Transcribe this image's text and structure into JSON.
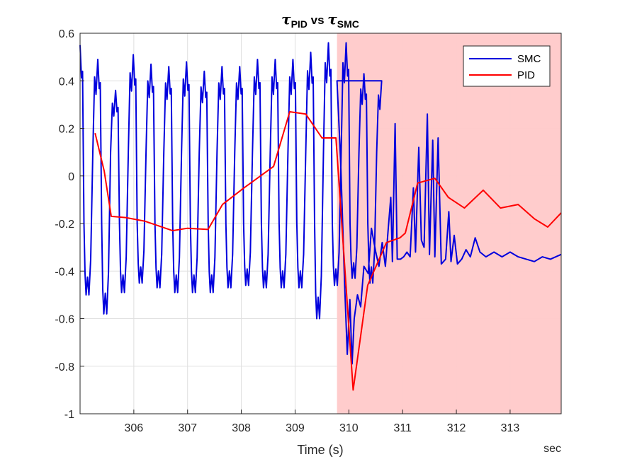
{
  "chart_data": {
    "type": "line",
    "title_main": "τ",
    "title_sub1": "PID",
    "title_vs": " vs ",
    "title_main2": "τ",
    "title_sub2": "SMC",
    "xlabel": "Time (s)",
    "x_unit_note": "sec",
    "xlim": [
      305.0,
      313.95
    ],
    "ylim": [
      -1,
      0.6
    ],
    "xticks": [
      306,
      307,
      308,
      309,
      310,
      311,
      312,
      313
    ],
    "yticks": [
      0.6,
      0.4,
      0.2,
      0,
      -0.2,
      -0.4,
      -0.6,
      -0.8,
      -1
    ],
    "ytick_labels": [
      "0.6",
      "0.4",
      "0.2",
      "0",
      "-0.2",
      "-0.4",
      "-0.6",
      "-0.8",
      "-1"
    ],
    "grid": true,
    "legend_location": "top-right",
    "highlight_region": {
      "x_start": 309.78,
      "x_end": 313.95,
      "color": "#ffc9c9"
    },
    "series": [
      {
        "name": "SMC",
        "color": "#0000dd",
        "oscillation": {
          "x_start": 305.0,
          "x_end": 309.78,
          "period": 0.33,
          "upper_envelope": 0.47,
          "lower_envelope": -0.44,
          "peaks": [
            0.55,
            0.49,
            0.36,
            0.51,
            0.47,
            0.46,
            0.48,
            0.44,
            0.46,
            0.46,
            0.49,
            0.49,
            0.49,
            0.52,
            0.56,
            0.56,
            0.43,
            0.4
          ],
          "troughs": [
            -0.5,
            -0.58,
            -0.49,
            -0.45,
            -0.47,
            -0.49,
            -0.49,
            -0.49,
            -0.47,
            -0.46,
            -0.47,
            -0.47,
            -0.47,
            -0.6,
            -0.46,
            -0.43,
            -0.45
          ]
        },
        "values_after_transition": [
          [
            309.78,
            0.4
          ],
          [
            309.85,
            0.05
          ],
          [
            309.92,
            -0.45
          ],
          [
            309.97,
            -0.75
          ],
          [
            310.02,
            -0.52
          ],
          [
            310.06,
            -0.79
          ],
          [
            310.1,
            -0.6
          ],
          [
            310.16,
            -0.5
          ],
          [
            310.22,
            -0.55
          ],
          [
            310.28,
            -0.38
          ],
          [
            310.36,
            -0.41
          ],
          [
            310.42,
            -0.22
          ],
          [
            310.5,
            -0.32
          ],
          [
            310.56,
            -0.38
          ],
          [
            310.62,
            -0.28
          ],
          [
            310.68,
            -0.38
          ],
          [
            310.73,
            -0.23
          ],
          [
            310.78,
            -0.09
          ],
          [
            310.81,
            -0.36
          ],
          [
            310.86,
            0.22
          ],
          [
            310.9,
            -0.35
          ],
          [
            310.96,
            -0.35
          ],
          [
            311.02,
            -0.34
          ],
          [
            311.08,
            -0.32
          ],
          [
            311.14,
            -0.34
          ],
          [
            311.2,
            -0.05
          ],
          [
            311.24,
            -0.32
          ],
          [
            311.3,
            0.12
          ],
          [
            311.35,
            -0.27
          ],
          [
            311.4,
            -0.3
          ],
          [
            311.46,
            0.26
          ],
          [
            311.5,
            -0.33
          ],
          [
            311.56,
            0.15
          ],
          [
            311.6,
            -0.34
          ],
          [
            311.66,
            0.16
          ],
          [
            311.72,
            -0.37
          ],
          [
            311.8,
            -0.35
          ],
          [
            311.86,
            -0.15
          ],
          [
            311.9,
            -0.36
          ],
          [
            311.96,
            -0.25
          ],
          [
            312.02,
            -0.37
          ],
          [
            312.1,
            -0.35
          ],
          [
            312.18,
            -0.31
          ],
          [
            312.26,
            -0.34
          ],
          [
            312.35,
            -0.26
          ],
          [
            312.44,
            -0.32
          ],
          [
            312.55,
            -0.34
          ],
          [
            312.7,
            -0.32
          ],
          [
            312.85,
            -0.34
          ],
          [
            313.0,
            -0.32
          ],
          [
            313.15,
            -0.34
          ],
          [
            313.3,
            -0.35
          ],
          [
            313.45,
            -0.36
          ],
          [
            313.6,
            -0.34
          ],
          [
            313.75,
            -0.35
          ],
          [
            313.95,
            -0.33
          ]
        ]
      },
      {
        "name": "PID",
        "color": "#ff0000",
        "x": [
          305.28,
          305.45,
          305.58,
          305.85,
          306.2,
          306.72,
          307.0,
          307.38,
          307.65,
          308.05,
          308.6,
          308.9,
          309.2,
          309.5,
          309.76,
          310.08,
          310.35,
          310.7,
          310.95,
          311.05,
          311.28,
          311.6,
          311.85,
          312.15,
          312.5,
          312.82,
          313.15,
          313.45,
          313.7,
          313.95
        ],
        "y": [
          0.18,
          0.02,
          -0.17,
          -0.175,
          -0.19,
          -0.23,
          -0.22,
          -0.225,
          -0.12,
          -0.05,
          0.04,
          0.27,
          0.26,
          0.16,
          0.16,
          -0.9,
          -0.46,
          -0.28,
          -0.26,
          -0.24,
          -0.03,
          -0.01,
          -0.09,
          -0.135,
          -0.06,
          -0.135,
          -0.12,
          -0.18,
          -0.215,
          -0.155
        ]
      }
    ]
  }
}
